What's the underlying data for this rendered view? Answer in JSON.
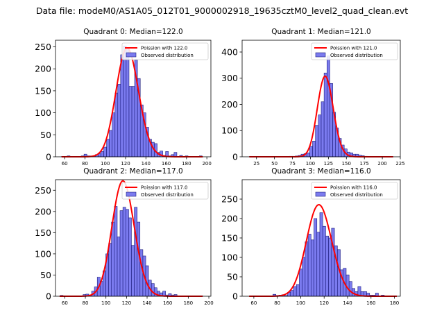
{
  "suptitle": "Data file: modeM0/AS1A05_012T01_9000002918_19635cztM0_level2_quad_clean.evt",
  "colors": {
    "bar_fill": "#7b7bef",
    "bar_edge": "#1a1a7a",
    "poisson_line": "#ff0000"
  },
  "chart_data": [
    {
      "type": "bar",
      "title": "Quadrant 0: Median=122.0",
      "legend": [
        "Poission with 122.0",
        "Observed distribution"
      ],
      "legend_position": "top-right",
      "xlim": [
        51,
        204
      ],
      "ylim": [
        0,
        265
      ],
      "xticks": [
        60,
        80,
        100,
        120,
        140,
        160,
        180,
        200
      ],
      "yticks": [
        0,
        50,
        100,
        150,
        200,
        250
      ],
      "bin_width": 2.77,
      "bins": [
        [
          57,
          1
        ],
        [
          59.7,
          0
        ],
        [
          62.5,
          2
        ],
        [
          65.3,
          0
        ],
        [
          68,
          0
        ],
        [
          70.8,
          1
        ],
        [
          73.6,
          0
        ],
        [
          76.3,
          2
        ],
        [
          79.1,
          6
        ],
        [
          81.9,
          2
        ],
        [
          84.7,
          2
        ],
        [
          87.4,
          2
        ],
        [
          90.2,
          5
        ],
        [
          93,
          7
        ],
        [
          95.7,
          12
        ],
        [
          98.5,
          22
        ],
        [
          101.3,
          40
        ],
        [
          104,
          60
        ],
        [
          106.8,
          100
        ],
        [
          109.6,
          145
        ],
        [
          112.3,
          165
        ],
        [
          115.1,
          232
        ],
        [
          117.9,
          252
        ],
        [
          120.6,
          248
        ],
        [
          123.4,
          160
        ],
        [
          126.2,
          160
        ],
        [
          128.9,
          220
        ],
        [
          131.7,
          178
        ],
        [
          134.5,
          118
        ],
        [
          137.2,
          100
        ],
        [
          140,
          67
        ],
        [
          142.8,
          40
        ],
        [
          145.5,
          33
        ],
        [
          148.3,
          30
        ],
        [
          151.1,
          10
        ],
        [
          153.8,
          13
        ],
        [
          156.6,
          3
        ],
        [
          159.4,
          12
        ],
        [
          162.1,
          2
        ],
        [
          164.9,
          5
        ],
        [
          167.7,
          10
        ],
        [
          170.4,
          0
        ],
        [
          173.2,
          3
        ],
        [
          176,
          0
        ],
        [
          178.7,
          2
        ],
        [
          181.5,
          0
        ],
        [
          184.3,
          0
        ],
        [
          187,
          0
        ],
        [
          189.8,
          0
        ],
        [
          192.6,
          2
        ]
      ],
      "poisson_mean": 122.0
    },
    {
      "type": "bar",
      "title": "Quadrant 1: Median=121.0",
      "legend": [
        "Poission with 121.0",
        "Observed distribution"
      ],
      "legend_position": "top-right",
      "xlim": [
        5,
        225
      ],
      "ylim": [
        0,
        445
      ],
      "xticks": [
        25,
        50,
        75,
        100,
        125,
        150,
        175,
        200,
        225
      ],
      "yticks": [
        0,
        100,
        200,
        300,
        400
      ],
      "bin_width": 4,
      "bins": [
        [
          15,
          1
        ],
        [
          19,
          0
        ],
        [
          23,
          0
        ],
        [
          27,
          0
        ],
        [
          31,
          1
        ],
        [
          35,
          0
        ],
        [
          39,
          0
        ],
        [
          43,
          0
        ],
        [
          47,
          0
        ],
        [
          51,
          0
        ],
        [
          55,
          1
        ],
        [
          59,
          0
        ],
        [
          63,
          0
        ],
        [
          67,
          0
        ],
        [
          71,
          2
        ],
        [
          75,
          2
        ],
        [
          79,
          3
        ],
        [
          83,
          5
        ],
        [
          87,
          10
        ],
        [
          91,
          12
        ],
        [
          95,
          15
        ],
        [
          99,
          40
        ],
        [
          103,
          60
        ],
        [
          107,
          120
        ],
        [
          111,
          160
        ],
        [
          115,
          210
        ],
        [
          119,
          320
        ],
        [
          123,
          385
        ],
        [
          127,
          280
        ],
        [
          131,
          170
        ],
        [
          135,
          110
        ],
        [
          139,
          70
        ],
        [
          143,
          45
        ],
        [
          147,
          30
        ],
        [
          151,
          18
        ],
        [
          155,
          15
        ],
        [
          159,
          10
        ],
        [
          163,
          10
        ],
        [
          167,
          6
        ],
        [
          171,
          4
        ],
        [
          175,
          2
        ],
        [
          179,
          1
        ],
        [
          183,
          0
        ],
        [
          187,
          1
        ],
        [
          191,
          1
        ],
        [
          195,
          0
        ],
        [
          199,
          0
        ],
        [
          203,
          0
        ],
        [
          207,
          0
        ],
        [
          211,
          1
        ]
      ],
      "poisson_mean": 121.0
    },
    {
      "type": "bar",
      "title": "Quadrant 2: Median=117.0",
      "legend": [
        "Poission with 117.0",
        "Observed distribution"
      ],
      "legend_position": "top-right",
      "xlim": [
        51,
        202
      ],
      "ylim": [
        0,
        275
      ],
      "xticks": [
        60,
        80,
        100,
        120,
        140,
        160,
        180,
        200
      ],
      "yticks": [
        0,
        50,
        100,
        150,
        200,
        250
      ],
      "bin_width": 2.77,
      "bins": [
        [
          55.6,
          2
        ],
        [
          58.4,
          0
        ],
        [
          61.2,
          1
        ],
        [
          63.9,
          0
        ],
        [
          66.7,
          0
        ],
        [
          69.5,
          1
        ],
        [
          72.2,
          0
        ],
        [
          75,
          0
        ],
        [
          77.8,
          4
        ],
        [
          80.5,
          5
        ],
        [
          83.3,
          3
        ],
        [
          86.1,
          12
        ],
        [
          88.8,
          22
        ],
        [
          91.6,
          45
        ],
        [
          94.4,
          35
        ],
        [
          97.1,
          60
        ],
        [
          99.9,
          100
        ],
        [
          102.7,
          125
        ],
        [
          105.4,
          175
        ],
        [
          108.2,
          212
        ],
        [
          111,
          140
        ],
        [
          113.7,
          202
        ],
        [
          116.5,
          210
        ],
        [
          119.3,
          205
        ],
        [
          122,
          185
        ],
        [
          124.8,
          120
        ],
        [
          127.6,
          210
        ],
        [
          130.3,
          175
        ],
        [
          133.1,
          110
        ],
        [
          135.9,
          95
        ],
        [
          138.6,
          72
        ],
        [
          141.4,
          38
        ],
        [
          144.2,
          30
        ],
        [
          146.9,
          20
        ],
        [
          149.7,
          12
        ],
        [
          152.5,
          8
        ],
        [
          155.2,
          12
        ],
        [
          158,
          3
        ],
        [
          160.8,
          6
        ],
        [
          163.5,
          3
        ],
        [
          166.3,
          4
        ],
        [
          169.1,
          0
        ],
        [
          171.8,
          1
        ],
        [
          174.6,
          0
        ],
        [
          177.4,
          1
        ],
        [
          180.1,
          0
        ],
        [
          182.9,
          0
        ],
        [
          185.7,
          0
        ],
        [
          188.4,
          0
        ],
        [
          191.2,
          1
        ]
      ],
      "poisson_mean": 117.0
    },
    {
      "type": "bar",
      "title": "Quadrant 3: Median=116.0",
      "legend": [
        "Poission with 116.0",
        "Observed distribution"
      ],
      "legend_position": "top-right",
      "xlim": [
        50,
        185
      ],
      "ylim": [
        0,
        300
      ],
      "xticks": [
        60,
        80,
        100,
        120,
        140,
        160,
        180
      ],
      "yticks": [
        0,
        50,
        100,
        150,
        200,
        250
      ],
      "bin_width": 2.5,
      "bins": [
        [
          56.3,
          1
        ],
        [
          58.8,
          0
        ],
        [
          61.3,
          0
        ],
        [
          63.8,
          0
        ],
        [
          66.3,
          1
        ],
        [
          68.8,
          0
        ],
        [
          71.3,
          0
        ],
        [
          73.8,
          0
        ],
        [
          76.3,
          5
        ],
        [
          78.8,
          2
        ],
        [
          81.3,
          3
        ],
        [
          83.8,
          4
        ],
        [
          86.3,
          2
        ],
        [
          88.8,
          10
        ],
        [
          91.3,
          15
        ],
        [
          93.8,
          25
        ],
        [
          96.3,
          30
        ],
        [
          98.8,
          70
        ],
        [
          101.3,
          100
        ],
        [
          103.8,
          140
        ],
        [
          106.3,
          160
        ],
        [
          108.8,
          145
        ],
        [
          111.3,
          200
        ],
        [
          113.8,
          165
        ],
        [
          116.3,
          215
        ],
        [
          118.8,
          180
        ],
        [
          121.3,
          155
        ],
        [
          123.8,
          150
        ],
        [
          126.3,
          175
        ],
        [
          128.8,
          130
        ],
        [
          131.3,
          120
        ],
        [
          133.8,
          68
        ],
        [
          136.3,
          72
        ],
        [
          138.8,
          55
        ],
        [
          141.3,
          38
        ],
        [
          143.8,
          20
        ],
        [
          146.3,
          12
        ],
        [
          148.8,
          25
        ],
        [
          151.3,
          12
        ],
        [
          153.8,
          12
        ],
        [
          156.3,
          8
        ],
        [
          158.8,
          3
        ],
        [
          161.3,
          3
        ],
        [
          163.8,
          8
        ],
        [
          166.3,
          1
        ],
        [
          168.8,
          3
        ],
        [
          171.3,
          1
        ],
        [
          173.8,
          0
        ],
        [
          176.3,
          0
        ],
        [
          178.8,
          1
        ]
      ],
      "poisson_mean": 116.0
    }
  ]
}
